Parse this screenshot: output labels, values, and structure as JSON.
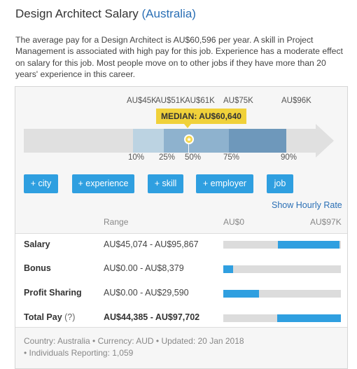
{
  "header": {
    "title": "Design Architect Salary",
    "country": "(Australia)"
  },
  "intro": "The average pay for a Design Architect is AU$60,596 per year. A skill in Project Management is associated with high pay for this job. Experience has a moderate effect on salary for this job. Most people move on to other jobs if they have more than 20 years' experience in this career.",
  "distribution": {
    "top_labels": [
      "AU$45K",
      "AU$51K",
      "AU$61K",
      "AU$75K",
      "AU$96K"
    ],
    "median_label": "MEDIAN: AU$60,640",
    "percentile_labels": [
      "10%",
      "25%",
      "50%",
      "75%",
      "90%"
    ],
    "colors": {
      "p10_25": "#bcd3e2",
      "p25_50": "#8eb2ce",
      "p50_75": "#8eb2ce",
      "p75_90": "#6e98bb",
      "track": "#e0e0e0",
      "median": "#f0d13a"
    }
  },
  "filters": [
    "+ city",
    "+ experience",
    "+ skill",
    "+ employer",
    "job"
  ],
  "hourly_link": "Show Hourly Rate",
  "table": {
    "range_header": "Range",
    "min_label": "AU$0",
    "max_label": "AU$97K",
    "rows": [
      {
        "label": "Salary",
        "range": "AU$45,074 - AU$95,867",
        "bar_start": 0.465,
        "bar_end": 0.988
      },
      {
        "label": "Bonus",
        "range": "AU$0.00 - AU$8,379",
        "bar_start": 0.0,
        "bar_end": 0.086
      },
      {
        "label": "Profit Sharing",
        "range": "AU$0.00 - AU$29,590",
        "bar_start": 0.0,
        "bar_end": 0.305
      },
      {
        "label": "Total Pay",
        "help": "(?)",
        "range": "AU$44,385 - AU$97,702",
        "bar_start": 0.457,
        "bar_end": 1.0
      }
    ]
  },
  "footer": {
    "line1": "Country: Australia • Currency: AUD • Updated: 20 Jan 2018",
    "line2": "• Individuals Reporting: 1,059"
  }
}
